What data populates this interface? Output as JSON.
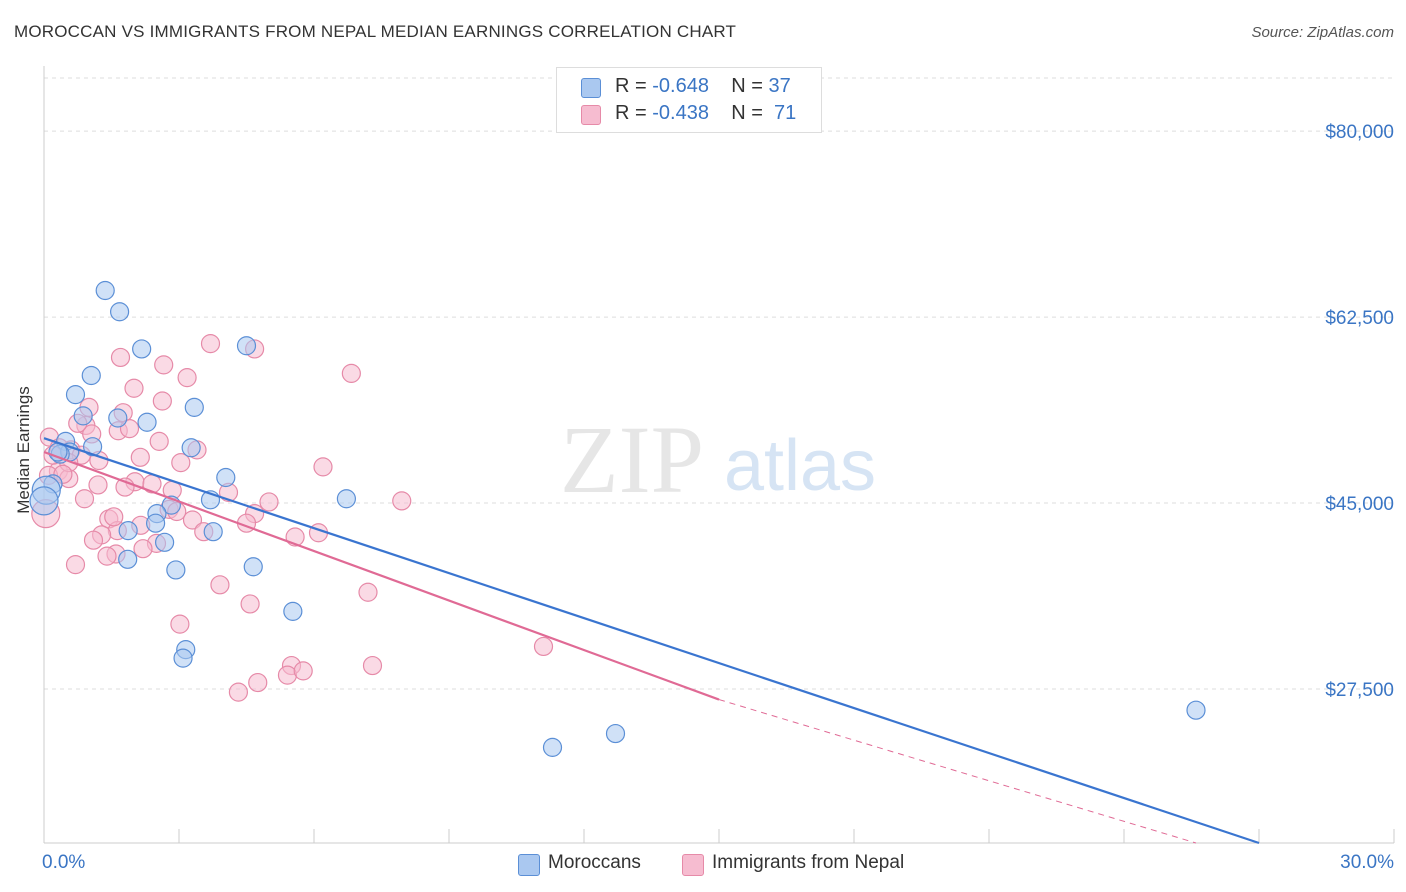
{
  "title": "MOROCCAN VS IMMIGRANTS FROM NEPAL MEDIAN EARNINGS CORRELATION CHART",
  "source": "Source: ZipAtlas.com",
  "watermark": {
    "zip": "ZIP",
    "atlas": "atlas"
  },
  "legend": {
    "rows": [
      {
        "r_label": "R =",
        "r_value": "-0.648",
        "n_label": "N =",
        "n_value": "37"
      },
      {
        "r_label": "R =",
        "r_value": "-0.438",
        "n_label": "N =",
        "n_value": "71"
      }
    ]
  },
  "bottom_legend": {
    "moroccans": "Moroccans",
    "nepal": "Immigrants from Nepal"
  },
  "colors": {
    "moroccans_fill": "#aac8f0",
    "moroccans_stroke": "#5b8fd6",
    "moroccans_line": "#3a75d0",
    "nepal_fill": "#f6bcd0",
    "nepal_stroke": "#e68aa8",
    "nepal_line": "#e06a95",
    "axis_text": "#3a75c4",
    "grid": "#dddddd"
  },
  "chart_data": {
    "type": "scatter",
    "title": "MOROCCAN VS IMMIGRANTS FROM NEPAL MEDIAN EARNINGS CORRELATION CHART",
    "xlabel": "",
    "ylabel": "Median Earnings",
    "xlim": [
      0,
      30
    ],
    "ylim": [
      13000,
      85000
    ],
    "x_tick_labels": [
      "0.0%",
      "30.0%"
    ],
    "y_ticks": [
      27500,
      45000,
      62500,
      80000
    ],
    "y_tick_labels": [
      "$27,500",
      "$45,000",
      "$62,500",
      "$80,000"
    ],
    "grid": true,
    "legend_placement": "top-center",
    "series": [
      {
        "name": "Moroccans",
        "points": [
          [
            1.36,
            65000
          ],
          [
            1.68,
            63000
          ],
          [
            1.05,
            57000
          ],
          [
            2.17,
            59500
          ],
          [
            4.5,
            59800
          ],
          [
            0.7,
            55200
          ],
          [
            1.64,
            53000
          ],
          [
            2.29,
            52600
          ],
          [
            0.87,
            53200
          ],
          [
            3.34,
            54000
          ],
          [
            0.48,
            50800
          ],
          [
            1.08,
            50300
          ],
          [
            3.27,
            50200
          ],
          [
            0.57,
            49800
          ],
          [
            0.36,
            49600
          ],
          [
            4.04,
            47400
          ],
          [
            3.7,
            45300
          ],
          [
            6.72,
            45400
          ],
          [
            2.83,
            44800
          ],
          [
            2.51,
            44000
          ],
          [
            2.48,
            43100
          ],
          [
            1.87,
            42400
          ],
          [
            3.76,
            42300
          ],
          [
            2.68,
            41300
          ],
          [
            4.65,
            39000
          ],
          [
            1.86,
            39700
          ],
          [
            2.93,
            38700
          ],
          [
            5.53,
            34800
          ],
          [
            3.15,
            31200
          ],
          [
            3.09,
            30400
          ],
          [
            0.31,
            49800
          ],
          [
            0.2,
            46800
          ],
          [
            0.05,
            46200
          ],
          [
            11.3,
            22000
          ],
          [
            12.7,
            23300
          ],
          [
            25.6,
            25500
          ],
          [
            0.0,
            45200
          ]
        ]
      },
      {
        "name": "Immigrants from Nepal",
        "points": [
          [
            3.7,
            60000
          ],
          [
            4.68,
            59500
          ],
          [
            1.7,
            58700
          ],
          [
            2.66,
            58000
          ],
          [
            6.83,
            57200
          ],
          [
            3.18,
            56800
          ],
          [
            2.0,
            55800
          ],
          [
            2.63,
            54600
          ],
          [
            1.76,
            53500
          ],
          [
            1.0,
            54000
          ],
          [
            0.93,
            52300
          ],
          [
            1.65,
            51800
          ],
          [
            1.06,
            51500
          ],
          [
            0.12,
            51200
          ],
          [
            2.56,
            50800
          ],
          [
            0.6,
            50000
          ],
          [
            0.83,
            49500
          ],
          [
            1.22,
            49000
          ],
          [
            2.14,
            49300
          ],
          [
            3.04,
            48800
          ],
          [
            6.2,
            48400
          ],
          [
            0.32,
            48000
          ],
          [
            0.55,
            47300
          ],
          [
            2.02,
            47000
          ],
          [
            1.2,
            46700
          ],
          [
            2.85,
            46200
          ],
          [
            4.1,
            46000
          ],
          [
            7.95,
            45200
          ],
          [
            2.78,
            44400
          ],
          [
            4.68,
            44000
          ],
          [
            1.44,
            43500
          ],
          [
            3.3,
            43400
          ],
          [
            2.15,
            42900
          ],
          [
            1.63,
            42400
          ],
          [
            1.28,
            42000
          ],
          [
            5.58,
            41800
          ],
          [
            2.5,
            41200
          ],
          [
            1.6,
            40200
          ],
          [
            1.4,
            40000
          ],
          [
            0.7,
            39200
          ],
          [
            3.91,
            37300
          ],
          [
            4.58,
            35500
          ],
          [
            7.2,
            36600
          ],
          [
            3.02,
            33600
          ],
          [
            11.1,
            31500
          ],
          [
            5.5,
            29700
          ],
          [
            7.3,
            29700
          ],
          [
            5.41,
            28800
          ],
          [
            4.75,
            28100
          ],
          [
            4.32,
            27200
          ],
          [
            5.76,
            29200
          ],
          [
            0.04,
            44000
          ],
          [
            0.34,
            50200
          ],
          [
            0.55,
            48800
          ],
          [
            1.8,
            46500
          ],
          [
            2.4,
            46800
          ],
          [
            3.4,
            50000
          ],
          [
            0.9,
            45400
          ],
          [
            1.9,
            52000
          ],
          [
            0.2,
            49500
          ],
          [
            0.1,
            47600
          ],
          [
            0.75,
            52500
          ],
          [
            2.95,
            44200
          ],
          [
            3.55,
            42300
          ],
          [
            4.5,
            43100
          ],
          [
            1.1,
            41500
          ],
          [
            5.0,
            45100
          ],
          [
            0.42,
            47700
          ],
          [
            1.55,
            43700
          ],
          [
            6.1,
            42200
          ],
          [
            2.2,
            40700
          ]
        ]
      }
    ],
    "trend_lines": [
      {
        "series": "Moroccans",
        "x_start": 0,
        "y_start": 51100,
        "x_end": 27,
        "y_end": 13000,
        "style": "solid"
      },
      {
        "series": "Immigrants from Nepal",
        "x_start": 0,
        "y_start": 49800,
        "x_end": 15,
        "y_end": 26500,
        "style": "solid"
      },
      {
        "series": "Immigrants from Nepal",
        "x_start": 15,
        "y_start": 26500,
        "x_end": 25.6,
        "y_end": 13000,
        "style": "dashed"
      }
    ]
  }
}
